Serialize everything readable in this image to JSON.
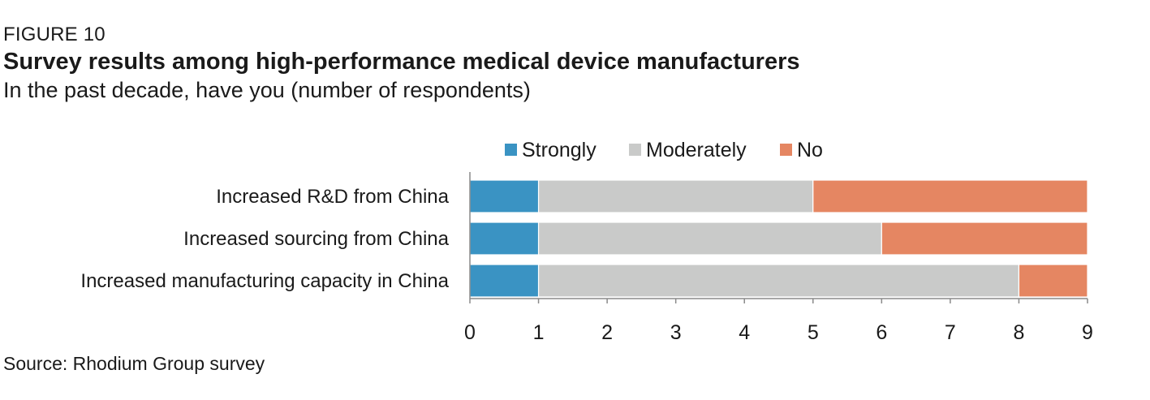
{
  "figure_label": "FIGURE 10",
  "title": "Survey results among high-performance medical device manufacturers",
  "subtitle": "In the past decade, have you (number of respondents)",
  "source": "Source: Rhodium Group survey",
  "chart_data": {
    "type": "bar",
    "orientation": "horizontal",
    "stacked": true,
    "categories": [
      "Increased R&D from China",
      "Increased sourcing from China",
      "Increased manufacturing capacity in China"
    ],
    "series": [
      {
        "name": "Strongly",
        "color": "#3a93c3",
        "values": [
          1,
          1,
          1
        ]
      },
      {
        "name": "Moderately",
        "color": "#c9cac9",
        "values": [
          4,
          5,
          7
        ]
      },
      {
        "name": "No",
        "color": "#e58662",
        "values": [
          4,
          3,
          1
        ]
      }
    ],
    "xlim": [
      0,
      9
    ],
    "xticks": [
      0,
      1,
      2,
      3,
      4,
      5,
      6,
      7,
      8,
      9
    ],
    "legend_position": "top",
    "grid": false
  }
}
